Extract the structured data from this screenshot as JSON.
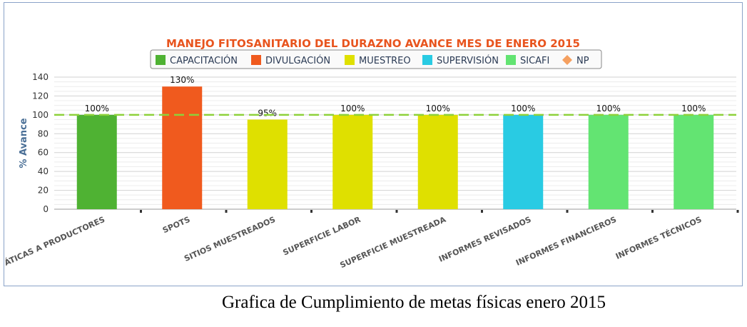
{
  "chart_data": {
    "type": "bar",
    "title": "MANEJO FITOSANITARIO DEL DURAZNO AVANCE MES DE ENERO 2015",
    "ylabel": "% Avance",
    "xlabel": "",
    "ylim": [
      0,
      140
    ],
    "yticks": [
      0,
      20,
      40,
      60,
      80,
      100,
      120,
      140
    ],
    "grid": true,
    "legend_position": "top",
    "categories": [
      "ÁTICAS A PRODUCTORES",
      "SPOTS",
      "SITIOS MUESTREADOS",
      "SUPERFICIE LABOR",
      "SUPERFICIE MUESTREADA",
      "INFORMES REVISADOS",
      "INFORMES FINANCIEROS",
      "INFORMES TÉCNICOS"
    ],
    "values": [
      100,
      130,
      95,
      100,
      100,
      100,
      100,
      100
    ],
    "data_labels": [
      "100%",
      "130%",
      "95%",
      "100%",
      "100%",
      "100%",
      "100%",
      "100%"
    ],
    "bar_series": [
      "CAPACITACIÓN",
      "DIVULGACIÓN",
      "MUESTREO",
      "MUESTREO",
      "MUESTREO",
      "SUPERVISIÓN",
      "SICAFI",
      "SICAFI"
    ],
    "legend": [
      {
        "name": "CAPACITACIÓN",
        "color": "#4fb233",
        "marker": "square"
      },
      {
        "name": "DIVULGACIÓN",
        "color": "#f05a1e",
        "marker": "square"
      },
      {
        "name": "MUESTREO",
        "color": "#dfe000",
        "marker": "square"
      },
      {
        "name": "SUPERVISIÓN",
        "color": "#29cbe3",
        "marker": "square"
      },
      {
        "name": "SICAFI",
        "color": "#63e472",
        "marker": "square"
      },
      {
        "name": "NP",
        "color": "#f5a060",
        "marker": "diamond"
      }
    ],
    "reference_line": {
      "series": "NP",
      "value": 100,
      "color": "#8dd13a",
      "style": "dashed"
    },
    "colors": {
      "title": "#e8541e",
      "axis_label": "#4a6f96"
    }
  },
  "caption": "Grafica de Cumplimiento de metas físicas enero 2015"
}
